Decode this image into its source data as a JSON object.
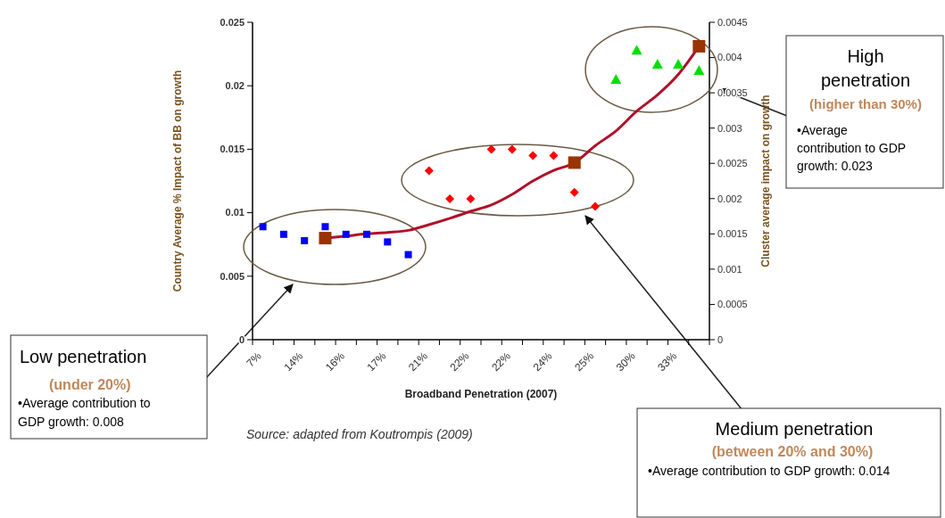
{
  "chart_data": {
    "type": "scatter",
    "xlabel": "Broadband Penetration (2007)",
    "ylabel": "Country Average % Impact of BB on growth",
    "y2label": "Cluster average impact on growth",
    "categories": [
      "7%",
      null,
      "14%",
      null,
      "16%",
      null,
      "17%",
      null,
      "21%",
      null,
      "22%",
      null,
      "22%",
      null,
      "24%",
      null,
      "25%",
      null,
      "30%",
      null,
      "33%",
      null
    ],
    "ylim": [
      0,
      0.025
    ],
    "yticks": [
      0,
      0.005,
      0.01,
      0.015,
      0.02,
      0.025
    ],
    "y2lim": [
      0,
      0.0045
    ],
    "y2ticks": [
      0,
      0.0005,
      0.001,
      0.0015,
      0.002,
      0.0025,
      0.003,
      0.0035,
      0.004,
      0.0045
    ],
    "grid": false,
    "series": [
      {
        "marker": "square",
        "color": "#0000ff",
        "values": [
          0.0089,
          0.0083,
          0.0078,
          0.0089,
          0.0083,
          0.0083,
          0.0077,
          0.0067,
          null,
          null,
          null,
          null,
          null,
          null,
          null,
          null,
          null,
          null,
          null,
          null,
          null,
          null
        ]
      },
      {
        "marker": "diamond",
        "color": "#ff0000",
        "values": [
          null,
          null,
          null,
          null,
          null,
          null,
          null,
          null,
          0.0133,
          0.0111,
          0.0111,
          0.015,
          0.015,
          0.0145,
          0.0145,
          0.0116,
          0.0105,
          null,
          null,
          null,
          null,
          null
        ]
      },
      {
        "marker": "triangle",
        "color": "#00e000",
        "values": [
          null,
          null,
          null,
          null,
          null,
          null,
          null,
          null,
          null,
          null,
          null,
          null,
          null,
          null,
          null,
          null,
          null,
          0.0205,
          0.0228,
          0.0217,
          0.0217,
          0.0212
        ]
      },
      {
        "type": "line",
        "marker": "none",
        "axis": "y2",
        "color": "#b0102a",
        "values": [
          null,
          null,
          null,
          0.00144,
          0.00147,
          0.0015,
          0.00152,
          0.00155,
          0.00163,
          0.00172,
          0.00182,
          0.00191,
          0.00206,
          0.00225,
          0.0024,
          0.00251,
          0.00275,
          0.00296,
          0.00324,
          0.00347,
          0.00376,
          0.00416
        ]
      },
      {
        "marker": "square",
        "axis": "y2",
        "color": "#993300",
        "values": [
          null,
          null,
          null,
          0.00144,
          null,
          null,
          null,
          null,
          null,
          null,
          null,
          null,
          null,
          null,
          null,
          0.00251,
          null,
          null,
          null,
          null,
          null,
          0.00416
        ]
      }
    ],
    "annotations": [
      "Low penetration",
      "(under 20%)",
      "•Average contribution to GDP growth: 0.008",
      "Medium penetration",
      "(between 20% and 30%)",
      "•Average contribution to GDP growth: 0.014",
      "High penetration",
      "(higher than 30%)",
      "•Average contribution to GDP growth: 0.023",
      "Source: adapted from Koutrompis (2009)"
    ]
  }
}
